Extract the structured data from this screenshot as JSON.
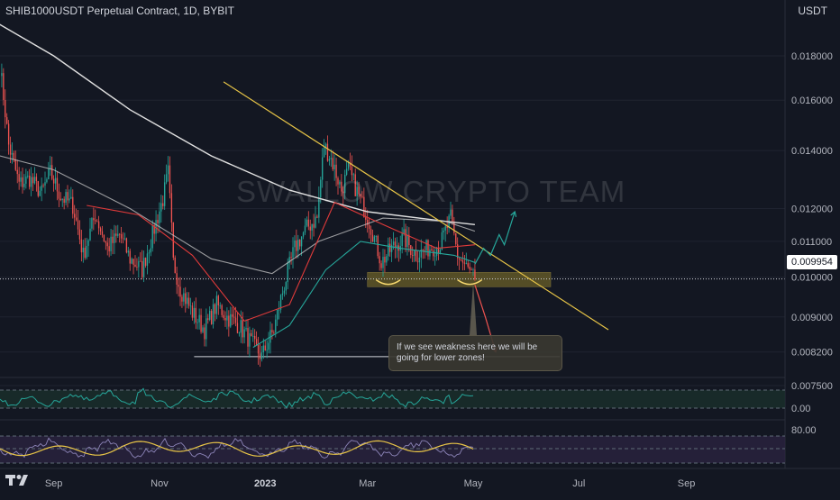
{
  "header": {
    "title": "SHIB1000USDT Perpetual Contract, 1D, BYBIT",
    "currency": "USDT"
  },
  "watermark": "SWALLOW CRYPTO TEAM",
  "annotation": {
    "text": "If we see weakness here we will be going for lower zones!"
  },
  "current_price_label": "0.009954",
  "colors": {
    "background": "#131722",
    "candle_up": "#26a69a",
    "candle_down": "#ef5350",
    "trendline": "#e8c547",
    "support_zone": "#8a7a2a",
    "projection_up": "#26a69a",
    "projection_down": "#ef5350",
    "ma_white": "#e0e0e0",
    "ma_gray": "#c8c8c8",
    "ma_red": "#e03a3a",
    "ma_green": "#26a69a"
  },
  "chart_data": {
    "type": "candlestick",
    "title": "SHIB1000USDT Perpetual Contract, 1D, BYBIT",
    "y_scale": "log",
    "ylim": [
      0.0071,
      0.0205
    ],
    "y_ticks": [
      "0.018000",
      "0.016000",
      "0.014000",
      "0.012000",
      "0.011000",
      "0.010000",
      "0.009000",
      "0.008200",
      "0.007500"
    ],
    "x_ticks": [
      "Sep",
      "Nov",
      "2023",
      "Mar",
      "May",
      "Jul",
      "Sep"
    ],
    "current_price": 0.009954,
    "support_zone": [
      0.00975,
      0.01013
    ],
    "lower_target": 0.0081,
    "trendline": {
      "from": [
        "2022-12-08",
        0.0168
      ],
      "to": [
        "2023-07-18",
        0.0087
      ]
    },
    "close_path": [
      [
        "2022-08-01",
        0.0175
      ],
      [
        "2022-08-06",
        0.0142
      ],
      [
        "2022-08-12",
        0.0128
      ],
      [
        "2022-08-18",
        0.013
      ],
      [
        "2022-08-25",
        0.0125
      ],
      [
        "2022-08-30",
        0.0132
      ],
      [
        "2022-09-05",
        0.0124
      ],
      [
        "2022-09-12",
        0.0121
      ],
      [
        "2022-09-18",
        0.0106
      ],
      [
        "2022-09-25",
        0.0118
      ],
      [
        "2022-10-02",
        0.0108
      ],
      [
        "2022-10-09",
        0.0112
      ],
      [
        "2022-10-15",
        0.0105
      ],
      [
        "2022-10-22",
        0.0102
      ],
      [
        "2022-10-28",
        0.0112
      ],
      [
        "2022-11-03",
        0.0123
      ],
      [
        "2022-11-06",
        0.0132
      ],
      [
        "2022-11-09",
        0.0104
      ],
      [
        "2022-11-13",
        0.0097
      ],
      [
        "2022-11-20",
        0.0091
      ],
      [
        "2022-11-27",
        0.0087
      ],
      [
        "2022-12-04",
        0.0093
      ],
      [
        "2022-12-10",
        0.009
      ],
      [
        "2022-12-17",
        0.0088
      ],
      [
        "2022-12-24",
        0.0084
      ],
      [
        "2022-12-30",
        0.0081
      ],
      [
        "2023-01-06",
        0.0087
      ],
      [
        "2023-01-12",
        0.0098
      ],
      [
        "2023-01-18",
        0.0108
      ],
      [
        "2023-01-25",
        0.0114
      ],
      [
        "2023-01-31",
        0.0117
      ],
      [
        "2023-02-04",
        0.0142
      ],
      [
        "2023-02-08",
        0.0137
      ],
      [
        "2023-02-14",
        0.0126
      ],
      [
        "2023-02-18",
        0.0133
      ],
      [
        "2023-02-24",
        0.0124
      ],
      [
        "2023-03-02",
        0.0116
      ],
      [
        "2023-03-09",
        0.0104
      ],
      [
        "2023-03-15",
        0.0108
      ],
      [
        "2023-03-22",
        0.0111
      ],
      [
        "2023-03-29",
        0.0106
      ],
      [
        "2023-04-05",
        0.0108
      ],
      [
        "2023-04-12",
        0.0109
      ],
      [
        "2023-04-18",
        0.0117
      ],
      [
        "2023-04-22",
        0.0106
      ],
      [
        "2023-04-28",
        0.0102
      ],
      [
        "2023-05-02",
        0.00995
      ]
    ],
    "moving_averages": [
      {
        "color": "white",
        "points": [
          [
            "2022-07-20",
            0.0202
          ],
          [
            "2022-09-01",
            0.018
          ],
          [
            "2022-10-15",
            0.0156
          ],
          [
            "2022-12-01",
            0.0138
          ],
          [
            "2023-01-15",
            0.0126
          ],
          [
            "2023-03-01",
            0.0119
          ],
          [
            "2023-04-15",
            0.0116
          ],
          [
            "2023-05-02",
            0.0115
          ]
        ]
      },
      {
        "color": "gray",
        "points": [
          [
            "2022-07-20",
            0.014
          ],
          [
            "2022-09-01",
            0.0133
          ],
          [
            "2022-10-15",
            0.012
          ],
          [
            "2022-12-01",
            0.0105
          ],
          [
            "2023-01-05",
            0.0101
          ],
          [
            "2023-02-01",
            0.011
          ],
          [
            "2023-03-10",
            0.0117
          ],
          [
            "2023-04-15",
            0.0116
          ],
          [
            "2023-05-02",
            0.0113
          ]
        ]
      },
      {
        "color": "red",
        "points": [
          [
            "2022-09-20",
            0.0121
          ],
          [
            "2022-10-20",
            0.0118
          ],
          [
            "2022-11-20",
            0.0106
          ],
          [
            "2022-12-20",
            0.0089
          ],
          [
            "2023-01-15",
            0.0093
          ],
          [
            "2023-02-10",
            0.0122
          ],
          [
            "2023-03-10",
            0.0115
          ],
          [
            "2023-04-10",
            0.0108
          ],
          [
            "2023-05-02",
            0.0109
          ]
        ]
      },
      {
        "color": "green",
        "points": [
          [
            "2022-12-25",
            0.0083
          ],
          [
            "2023-01-15",
            0.0088
          ],
          [
            "2023-02-05",
            0.0102
          ],
          [
            "2023-02-25",
            0.011
          ],
          [
            "2023-03-20",
            0.0108
          ],
          [
            "2023-04-20",
            0.0106
          ],
          [
            "2023-05-02",
            0.0104
          ]
        ]
      }
    ],
    "projections": [
      {
        "direction": "up",
        "points": [
          [
            "2023-05-02",
            0.01035
          ],
          [
            "2023-05-07",
            0.0108
          ],
          [
            "2023-05-11",
            0.0106
          ],
          [
            "2023-05-16",
            0.0112
          ],
          [
            "2023-05-19",
            0.0109
          ],
          [
            "2023-05-25",
            0.0119
          ]
        ]
      },
      {
        "direction": "down",
        "points": [
          [
            "2023-05-02",
            0.0098
          ],
          [
            "2023-05-08",
            0.009
          ],
          [
            "2023-05-14",
            0.0082
          ]
        ]
      }
    ],
    "indicator_1": {
      "axis_label": "0.00"
    },
    "indicator_2": {
      "axis_label": "80.00"
    }
  }
}
